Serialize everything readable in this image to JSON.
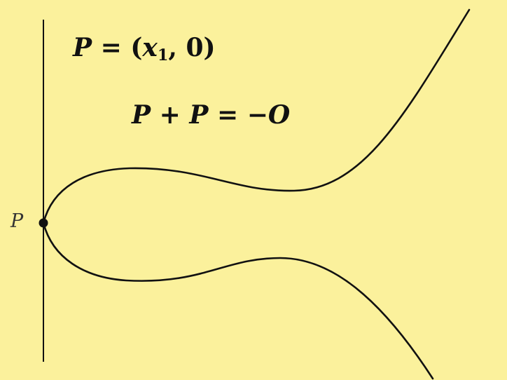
{
  "colors": {
    "background": "#fbf19c",
    "curve": "#111111",
    "axis": "#111111",
    "text": "#111111"
  },
  "equation_1": {
    "lhs": "P",
    "eq": "=",
    "open": "(",
    "var": "x",
    "sub": "1",
    "comma": ",",
    "zero": "0",
    "close": ")"
  },
  "equation_2": {
    "p1": "P",
    "plus": "+",
    "p2": "P",
    "eq": "=",
    "minus": "−",
    "o": "O"
  },
  "point_label": "P"
}
